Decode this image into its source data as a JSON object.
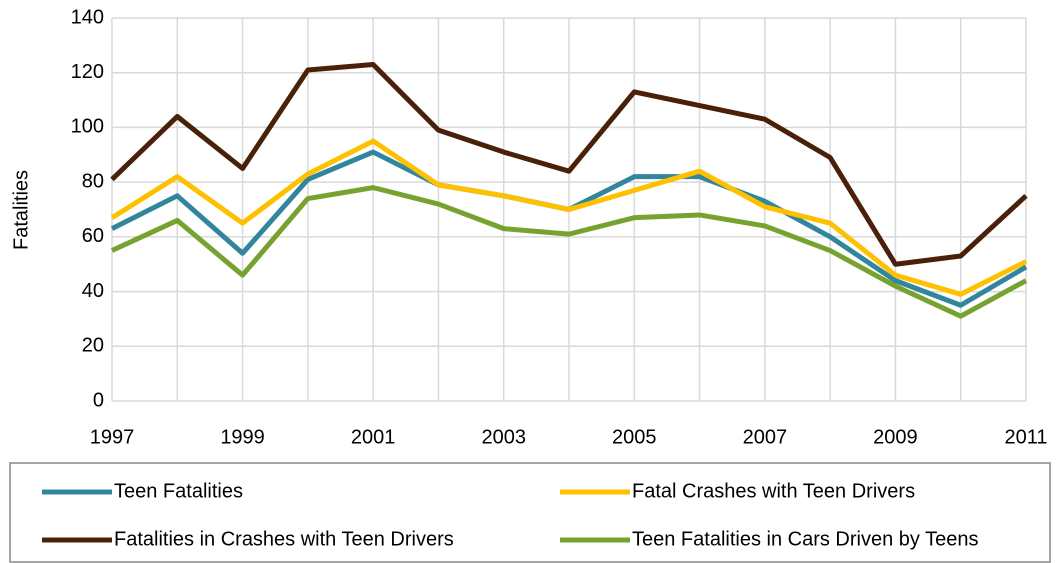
{
  "chart_data": {
    "type": "line",
    "y_label": "Fatalities",
    "x": [
      1997,
      1998,
      1999,
      2000,
      2001,
      2002,
      2003,
      2004,
      2005,
      2006,
      2007,
      2008,
      2009,
      2010,
      2011
    ],
    "xlim": [
      1997,
      2011
    ],
    "xticks": [
      1997,
      1999,
      2001,
      2003,
      2005,
      2007,
      2009,
      2011
    ],
    "ylim": [
      0,
      140
    ],
    "yticks": [
      0,
      20,
      40,
      60,
      80,
      100,
      120,
      140
    ],
    "grid": true,
    "legend_position": "bottom",
    "series": [
      {
        "name": "Teen Fatalities",
        "color": "#31859c",
        "values": [
          63,
          75,
          54,
          81,
          91,
          79,
          75,
          70,
          82,
          82,
          73,
          60,
          44,
          35,
          49
        ]
      },
      {
        "name": "Fatal Crashes with Teen Drivers",
        "color": "#ffc000",
        "values": [
          67,
          82,
          65,
          83,
          95,
          79,
          75,
          70,
          77,
          84,
          71,
          65,
          46,
          39,
          51
        ]
      },
      {
        "name": "Fatalities in Crashes with Teen Drivers",
        "color": "#4a2008",
        "values": [
          81,
          104,
          85,
          121,
          123,
          99,
          91,
          84,
          113,
          108,
          103,
          89,
          50,
          53,
          75
        ]
      },
      {
        "name": "Teen Fatalities in Cars Driven by Teens",
        "color": "#77a22f",
        "values": [
          55,
          66,
          46,
          74,
          78,
          72,
          63,
          61,
          67,
          68,
          64,
          55,
          42,
          31,
          44
        ]
      }
    ]
  }
}
